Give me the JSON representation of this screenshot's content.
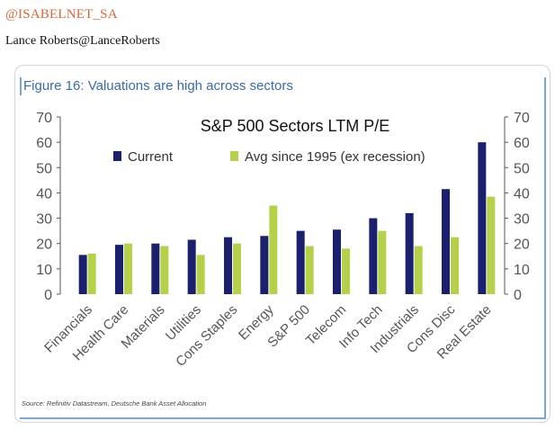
{
  "header": {
    "handle": "@ISABELNET_SA",
    "author": "Lance Roberts@LanceRoberts"
  },
  "figure": {
    "label": "Figure 16: Valuations are high across sectors",
    "source": "Source:   Refinitiv Datastream, Deutsche Bank Asset Allocation"
  },
  "chart_data": {
    "type": "bar",
    "title": "S&P 500 Sectors LTM P/E",
    "xlabel": "",
    "ylabel": "",
    "ylim": [
      0,
      70
    ],
    "yticks": [
      0,
      10,
      20,
      30,
      40,
      50,
      60,
      70
    ],
    "dual_y_axis": true,
    "grid": false,
    "legend_position": "top-left",
    "categories": [
      "Financials",
      "Health Care",
      "Materials",
      "Utilities",
      "Cons Staples",
      "Energy",
      "S&P 500",
      "Telecom",
      "Info Tech",
      "Industrials",
      "Cons Disc",
      "Real Estate"
    ],
    "series": [
      {
        "name": "Current",
        "color": "#1a1f6e",
        "values": [
          15.5,
          19.5,
          20,
          21.5,
          22.5,
          23,
          25,
          25.5,
          30,
          32,
          41.5,
          60
        ]
      },
      {
        "name": "Avg since 1995 (ex recession)",
        "color": "#b5d14a",
        "values": [
          16,
          20,
          19,
          15.5,
          20,
          35,
          19,
          18,
          25,
          19,
          22.5,
          38.5
        ]
      }
    ]
  }
}
